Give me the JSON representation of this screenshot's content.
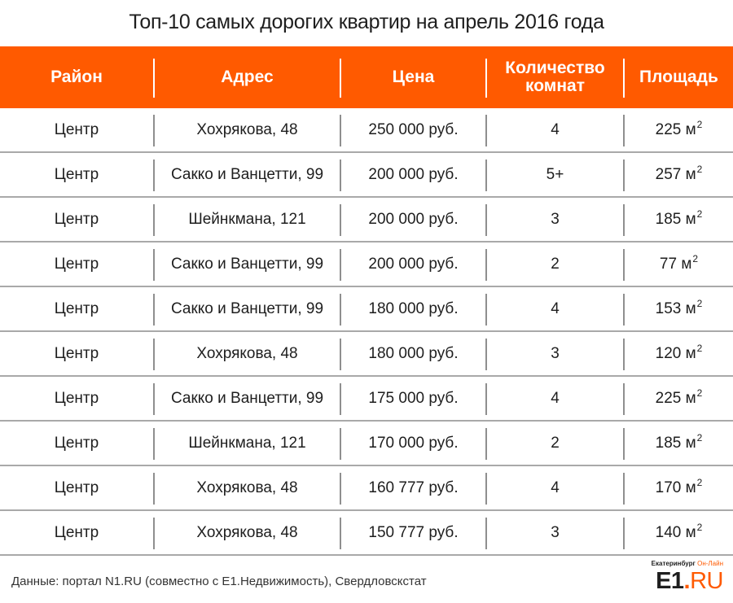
{
  "title": "Топ-10 самых дорогих квартир на апрель 2016 года",
  "colors": {
    "accent": "#ff5a00",
    "header_text": "#ffffff",
    "row_divider": "#a9a9a9"
  },
  "table": {
    "headers": [
      "Район",
      "Адрес",
      "Цена",
      "Количество комнат",
      "Площадь"
    ],
    "area_unit_base": "м",
    "area_unit_sup": "2",
    "rows": [
      {
        "district": "Центр",
        "address": "Хохрякова, 48",
        "price": "250 000 руб.",
        "rooms": "4",
        "area": "225"
      },
      {
        "district": "Центр",
        "address": "Сакко и Ванцетти, 99",
        "price": "200 000 руб.",
        "rooms": "5+",
        "area": "257"
      },
      {
        "district": "Центр",
        "address": "Шейнкмана, 121",
        "price": "200 000 руб.",
        "rooms": "3",
        "area": "185"
      },
      {
        "district": "Центр",
        "address": "Сакко и Ванцетти, 99",
        "price": "200 000 руб.",
        "rooms": "2",
        "area": "77"
      },
      {
        "district": "Центр",
        "address": "Сакко и Ванцетти, 99",
        "price": "180 000 руб.",
        "rooms": "4",
        "area": "153"
      },
      {
        "district": "Центр",
        "address": "Хохрякова, 48",
        "price": "180 000 руб.",
        "rooms": "3",
        "area": "120"
      },
      {
        "district": "Центр",
        "address": "Сакко и Ванцетти, 99",
        "price": "175 000 руб.",
        "rooms": "4",
        "area": "225"
      },
      {
        "district": "Центр",
        "address": "Шейнкмана, 121",
        "price": "170 000 руб.",
        "rooms": "2",
        "area": "185"
      },
      {
        "district": "Центр",
        "address": "Хохрякова, 48",
        "price": "160 777 руб.",
        "rooms": "4",
        "area": "170"
      },
      {
        "district": "Центр",
        "address": "Хохрякова, 48",
        "price": "150 777 руб.",
        "rooms": "3",
        "area": "140"
      }
    ]
  },
  "footer": {
    "source": "Данные: портал N1.RU (совместно с Е1.Недвижимость), Свердловскстат"
  },
  "logo": {
    "tagline_main": "Екатеринбург",
    "tagline_accent": "Он-Лайн",
    "name_main": "E1",
    "name_dot": ".",
    "name_ru": "RU"
  }
}
